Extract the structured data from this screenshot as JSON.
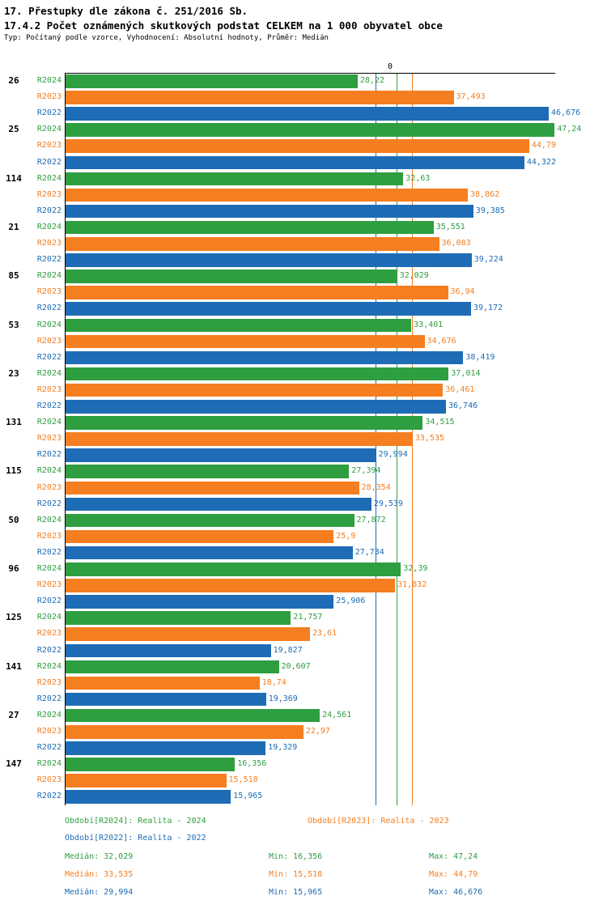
{
  "header": {
    "title1": "17. Přestupky dle zákona č. 251/2016 Sb.",
    "title2": "17.4.2 Počet oznámených skutkových podstat CELKEM na 1 000 obyvatel obce",
    "subtitle": "Typ: Počítaný podle vzorce, Vyhodnocení: Absolutní hodnoty, Průměr: Medián"
  },
  "axis": {
    "zero_label": "0"
  },
  "colors": {
    "R2024": "#2e9e40",
    "R2023": "#f57e20",
    "R2022": "#1e6cb5"
  },
  "chart_data": {
    "type": "bar",
    "orientation": "horizontal",
    "value_axis_max": 47.5,
    "grid": false,
    "legend_position": "bottom",
    "categories": [
      "26",
      "25",
      "114",
      "21",
      "85",
      "53",
      "23",
      "131",
      "115",
      "50",
      "96",
      "125",
      "141",
      "27",
      "147"
    ],
    "series": [
      {
        "name": "R2024",
        "color": "#2e9e40",
        "values": [
          28.22,
          47.24,
          32.63,
          35.551,
          32.029,
          33.401,
          37.014,
          34.515,
          27.394,
          27.872,
          32.39,
          21.757,
          20.607,
          24.561,
          16.356
        ],
        "labels": [
          "28,22",
          "47,24",
          "32,63",
          "35,551",
          "32,029",
          "33,401",
          "37,014",
          "34,515",
          "27,394",
          "27,872",
          "32,39",
          "21,757",
          "20,607",
          "24,561",
          "16,356"
        ]
      },
      {
        "name": "R2023",
        "color": "#f57e20",
        "values": [
          37.493,
          44.79,
          38.862,
          36.083,
          36.94,
          34.676,
          36.461,
          33.535,
          28.354,
          25.9,
          31.832,
          23.61,
          18.74,
          22.97,
          15.518
        ],
        "labels": [
          "37,493",
          "44,79",
          "38,862",
          "36,083",
          "36,94",
          "34,676",
          "36,461",
          "33,535",
          "28,354",
          "25,9",
          "31,832",
          "23,61",
          "18,74",
          "22,97",
          "15,518"
        ]
      },
      {
        "name": "R2022",
        "color": "#1e6cb5",
        "values": [
          46.676,
          44.322,
          39.385,
          39.224,
          39.172,
          38.419,
          36.746,
          29.994,
          29.539,
          27.734,
          25.906,
          19.827,
          19.369,
          19.329,
          15.965
        ],
        "labels": [
          "46,676",
          "44,322",
          "39,385",
          "39,224",
          "39,172",
          "38,419",
          "36,746",
          "29,994",
          "29,539",
          "27,734",
          "25,906",
          "19,827",
          "19,369",
          "19,329",
          "15,965"
        ]
      }
    ],
    "medians": [
      {
        "series": "R2024",
        "value": 32.029
      },
      {
        "series": "R2023",
        "value": 33.535
      },
      {
        "series": "R2022",
        "value": 29.994
      }
    ]
  },
  "legend": {
    "r2024": "Období[R2024]: Realita - 2024",
    "r2023": "Období[R2023]: Realita - 2023",
    "r2022": "Období[R2022]: Realita - 2022"
  },
  "stats": [
    {
      "series": "R2024",
      "median": "Medián: 32,029",
      "min": "Min: 16,356",
      "max": "Max: 47,24"
    },
    {
      "series": "R2023",
      "median": "Medián: 33,535",
      "min": "Min: 15,518",
      "max": "Max: 44,79"
    },
    {
      "series": "R2022",
      "median": "Medián: 29,994",
      "min": "Min: 15,965",
      "max": "Max: 46,676"
    }
  ]
}
